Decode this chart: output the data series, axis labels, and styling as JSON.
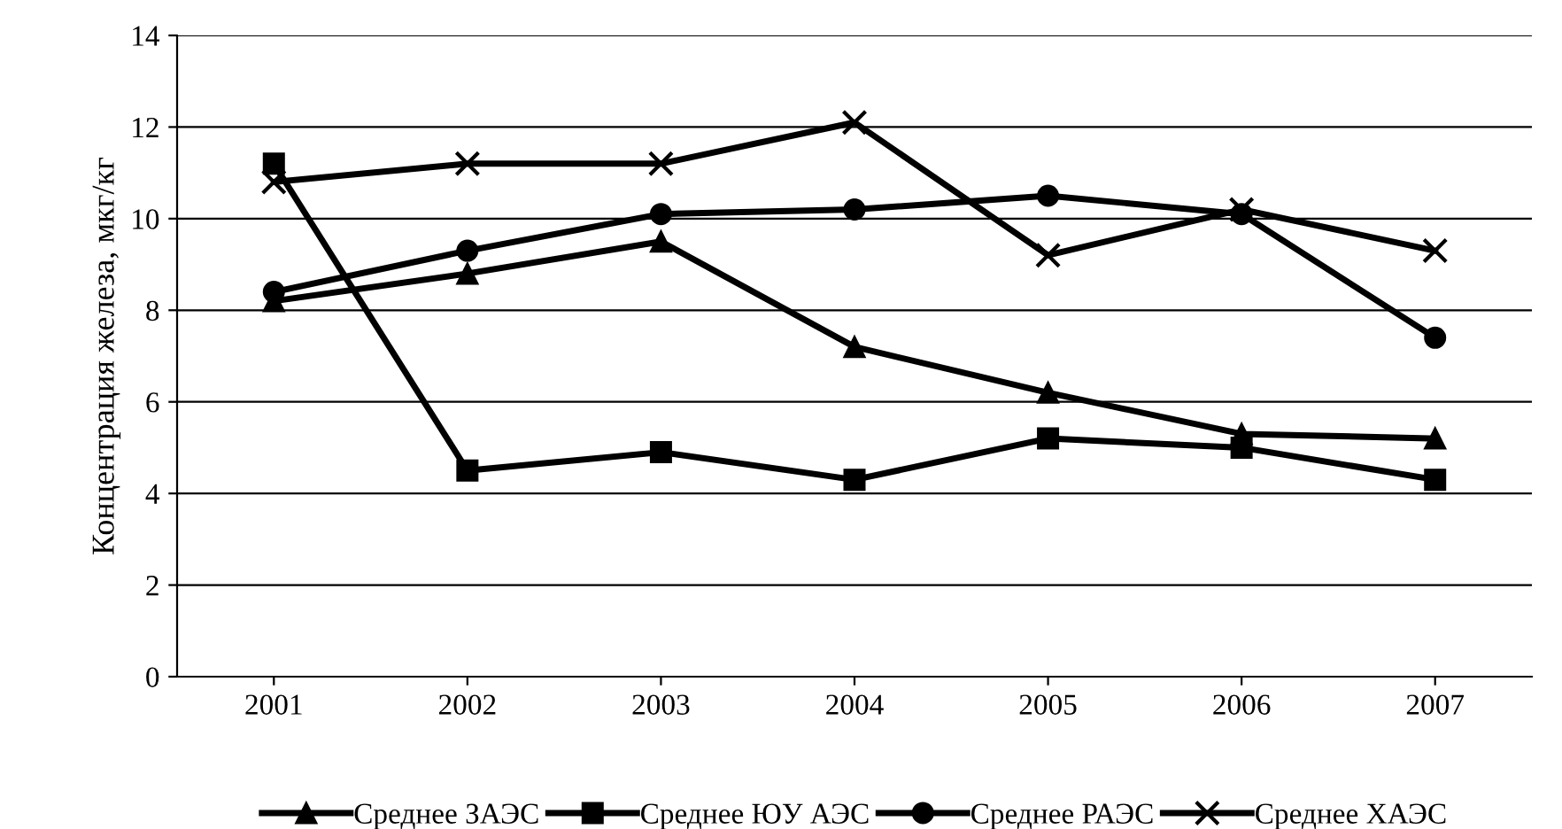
{
  "chart_data": {
    "type": "line",
    "ylabel": "Концентрация железа, мкг/кг",
    "categories": [
      "2001",
      "2002",
      "2003",
      "2004",
      "2005",
      "2006",
      "2007"
    ],
    "series": [
      {
        "name": "Среднее ЗАЭС",
        "color": "#000000",
        "marker": "triangle",
        "values": [
          8.2,
          8.8,
          9.5,
          7.2,
          6.2,
          5.3,
          5.2
        ]
      },
      {
        "name": "Среднее ЮУ АЭС",
        "color": "#000000",
        "marker": "square",
        "values": [
          11.2,
          4.5,
          4.9,
          4.3,
          5.2,
          5.0,
          4.3
        ]
      },
      {
        "name": "Среднее РАЭС",
        "color": "#000000",
        "marker": "circle",
        "values": [
          8.4,
          9.3,
          10.1,
          10.2,
          10.5,
          10.1,
          7.4
        ]
      },
      {
        "name": "Среднее ХАЭС",
        "color": "#000000",
        "marker": "cross",
        "values": [
          10.8,
          11.2,
          11.2,
          12.1,
          9.2,
          10.2,
          9.3
        ]
      }
    ],
    "ylim": [
      0,
      14
    ],
    "yticks": [
      0,
      2,
      4,
      6,
      8,
      10,
      12,
      14
    ],
    "grid": "y",
    "legend": "bottom",
    "line_style": "solid"
  }
}
